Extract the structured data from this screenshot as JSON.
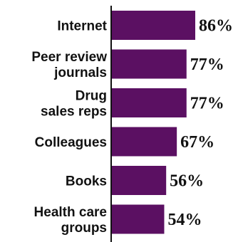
{
  "chart_data": {
    "type": "bar",
    "orientation": "horizontal",
    "categories": [
      [
        "Internet"
      ],
      [
        "Peer review",
        "journals"
      ],
      [
        "Drug",
        "sales reps"
      ],
      [
        "Colleagues"
      ],
      [
        "Books"
      ],
      [
        "Health care",
        "groups"
      ]
    ],
    "values": [
      86,
      77,
      77,
      67,
      56,
      54
    ],
    "value_labels": [
      "86%",
      "77%",
      "77%",
      "67%",
      "56%",
      "54%"
    ],
    "value_unit": "%",
    "bar_color": "#5b1062",
    "axis_color": "#111111",
    "title": "",
    "xlabel": "",
    "ylabel": "",
    "grid": false,
    "legend": "none"
  }
}
